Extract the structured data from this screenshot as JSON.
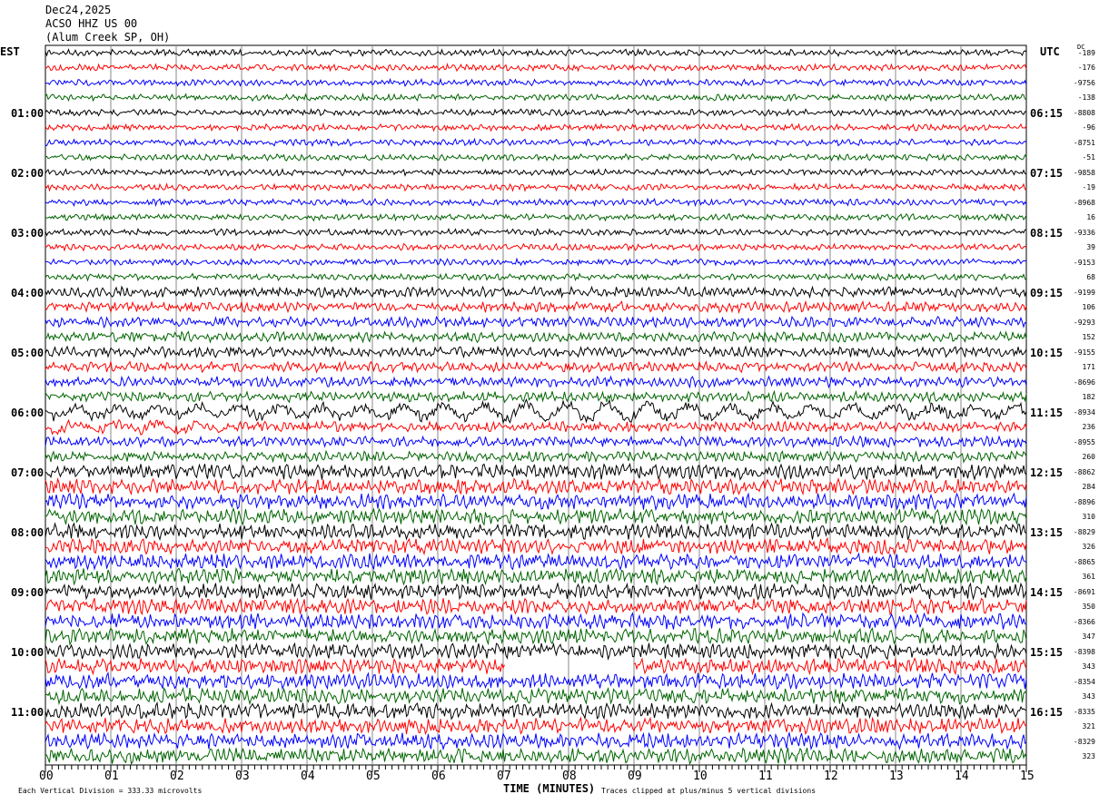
{
  "header": {
    "date": "Dec24,2025",
    "station": "ACSO HHZ US 00",
    "location": "(Alum Creek SP, OH)"
  },
  "chart_data": {
    "type": "line",
    "title": "ACSO HHZ US 00 helicorder",
    "xlabel": "TIME (MINUTES)",
    "x_ticks": [
      "00",
      "01",
      "02",
      "03",
      "04",
      "05",
      "06",
      "07",
      "08",
      "09",
      "10",
      "11",
      "12",
      "13",
      "14",
      "15"
    ],
    "xlim": [
      0,
      15
    ],
    "left_axis_title": "EST",
    "right_axis_title": "UTC",
    "dc_title": "DC",
    "left_labels": [
      "01:00",
      "02:00",
      "03:00",
      "04:00",
      "05:00",
      "06:00",
      "07:00",
      "08:00",
      "09:00",
      "10:00",
      "11:00"
    ],
    "right_labels": [
      "06:15",
      "07:15",
      "08:15",
      "09:15",
      "10:15",
      "11:15",
      "12:15",
      "13:15",
      "14:15",
      "15:15",
      "16:15"
    ],
    "trace_colors": [
      "#000000",
      "#ff0000",
      "#0000ff",
      "#006400"
    ],
    "dc_values": [
      "-189",
      "-176",
      "-9756",
      "-138",
      "-8808",
      "-96",
      "-8751",
      "-51",
      "-9858",
      "-19",
      "-8968",
      "16",
      "-9336",
      "39",
      "-9153",
      "68",
      "-9199",
      "106",
      "-9293",
      "152",
      "-9155",
      "171",
      "-8696",
      "182",
      "-8934",
      "236",
      "-8955",
      "260",
      "-8862",
      "284",
      "-8896",
      "310",
      "-8829",
      "326",
      "-8865",
      "361",
      "-8691",
      "350",
      "-8366",
      "347",
      "-8398",
      "343",
      "-8354",
      "343",
      "-8335",
      "321",
      "-8329",
      "323"
    ],
    "trace_count": 48,
    "footer_left": "Each Vertical Division =  333.33 microvolts",
    "footer_right": "Traces clipped at plus/minus 5 vertical divisions"
  }
}
